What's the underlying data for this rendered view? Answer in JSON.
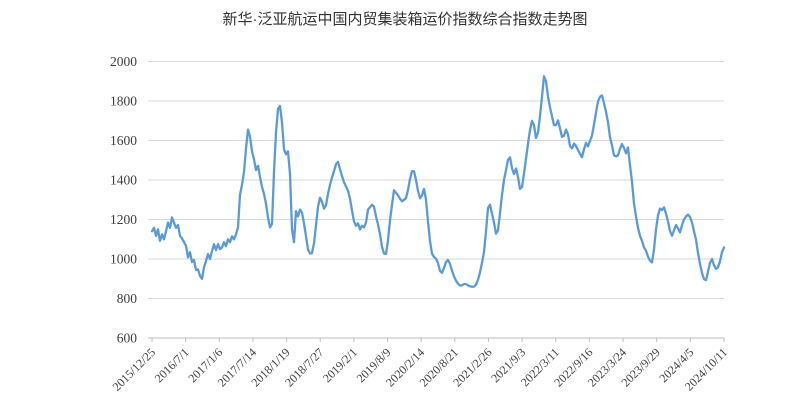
{
  "title": "新华·泛亚航运中国内贸集装箱运价指数综合指数走势图",
  "chart_data": {
    "type": "line",
    "title": "新华·泛亚航运中国内贸集装箱运价指数综合指数走势图",
    "xlabel": "",
    "ylabel": "",
    "ylim": [
      600,
      2000
    ],
    "y_ticks": [
      600,
      800,
      1000,
      1200,
      1400,
      1600,
      1800,
      2000
    ],
    "x_tick_labels": [
      "2015/12/25",
      "2016/7/1",
      "2017/1/6",
      "2017/7/14",
      "2018/1/19",
      "2018/7/27",
      "2019/2/1",
      "2019/8/9",
      "2020/2/14",
      "2020/8/21",
      "2021/2/26",
      "2021/9/3",
      "2022/3/11",
      "2022/9/16",
      "2023/3/24",
      "2023/9/29",
      "2024/4/5",
      "2024/10/11"
    ],
    "x_range": {
      "start": "2015/12/25",
      "end": "2024/10/11",
      "frequency": "weekly"
    },
    "grid": "horizontal",
    "legend": "none",
    "line_color": "#5B9BD5",
    "series": [
      {
        "name": "综合指数",
        "values_note": "index values sampled at uniform intervals from axis start (2015/12/25) to axis end (2024/10/11)",
        "values": [
          1140,
          1158,
          1117,
          1150,
          1092,
          1125,
          1100,
          1140,
          1185,
          1158,
          1210,
          1185,
          1158,
          1172,
          1117,
          1105,
          1085,
          1067,
          1008,
          1035,
          985,
          995,
          945,
          948,
          915,
          900,
          958,
          990,
          1025,
          1000,
          1040,
          1075,
          1045,
          1075,
          1050,
          1058,
          1085,
          1065,
          1100,
          1085,
          1115,
          1100,
          1125,
          1160,
          1325,
          1375,
          1440,
          1560,
          1655,
          1620,
          1545,
          1505,
          1450,
          1472,
          1415,
          1365,
          1330,
          1280,
          1210,
          1160,
          1178,
          1440,
          1640,
          1760,
          1775,
          1690,
          1555,
          1530,
          1545,
          1430,
          1150,
          1085,
          1242,
          1215,
          1250,
          1235,
          1180,
          1115,
          1048,
          1028,
          1030,
          1080,
          1170,
          1265,
          1310,
          1290,
          1255,
          1272,
          1330,
          1375,
          1412,
          1445,
          1480,
          1492,
          1455,
          1420,
          1388,
          1368,
          1345,
          1305,
          1245,
          1190,
          1168,
          1180,
          1150,
          1168,
          1160,
          1185,
          1250,
          1262,
          1275,
          1265,
          1215,
          1175,
          1125,
          1062,
          1028,
          1026,
          1095,
          1195,
          1275,
          1348,
          1335,
          1322,
          1305,
          1292,
          1300,
          1308,
          1350,
          1405,
          1445,
          1444,
          1400,
          1345,
          1308,
          1322,
          1355,
          1300,
          1190,
          1090,
          1028,
          1010,
          1002,
          978,
          940,
          930,
          955,
          985,
          995,
          975,
          942,
          912,
          890,
          875,
          866,
          867,
          873,
          873,
          867,
          862,
          859,
          860,
          870,
          895,
          932,
          980,
          1035,
          1140,
          1258,
          1275,
          1230,
          1185,
          1128,
          1145,
          1232,
          1325,
          1400,
          1450,
          1502,
          1515,
          1460,
          1430,
          1458,
          1415,
          1355,
          1365,
          1432,
          1508,
          1585,
          1652,
          1700,
          1678,
          1612,
          1640,
          1725,
          1822,
          1925,
          1900,
          1822,
          1768,
          1722,
          1678,
          1678,
          1702,
          1662,
          1618,
          1625,
          1655,
          1630,
          1572,
          1560,
          1585,
          1572,
          1552,
          1532,
          1515,
          1555,
          1588,
          1570,
          1598,
          1625,
          1682,
          1742,
          1798,
          1822,
          1828,
          1788,
          1745,
          1692,
          1617,
          1575,
          1525,
          1520,
          1525,
          1558,
          1582,
          1562,
          1535,
          1565,
          1475,
          1392,
          1280,
          1215,
          1158,
          1117,
          1092,
          1058,
          1042,
          1012,
          992,
          983,
          1050,
          1150,
          1220,
          1255,
          1248,
          1262,
          1230,
          1190,
          1142,
          1118,
          1145,
          1172,
          1155,
          1135,
          1172,
          1200,
          1215,
          1225,
          1212,
          1185,
          1140,
          1098,
          1030,
          975,
          930,
          898,
          893,
          935,
          980,
          1000,
          968,
          950,
          958,
          988,
          1035,
          1058
        ]
      }
    ]
  },
  "colors": {
    "line": "#5B9BD5",
    "grid": "#D9D9D9",
    "axis": "#BFBFBF",
    "tick_text": "#3f3f3f",
    "title_text": "#333333",
    "background": "#FFFFFF"
  }
}
